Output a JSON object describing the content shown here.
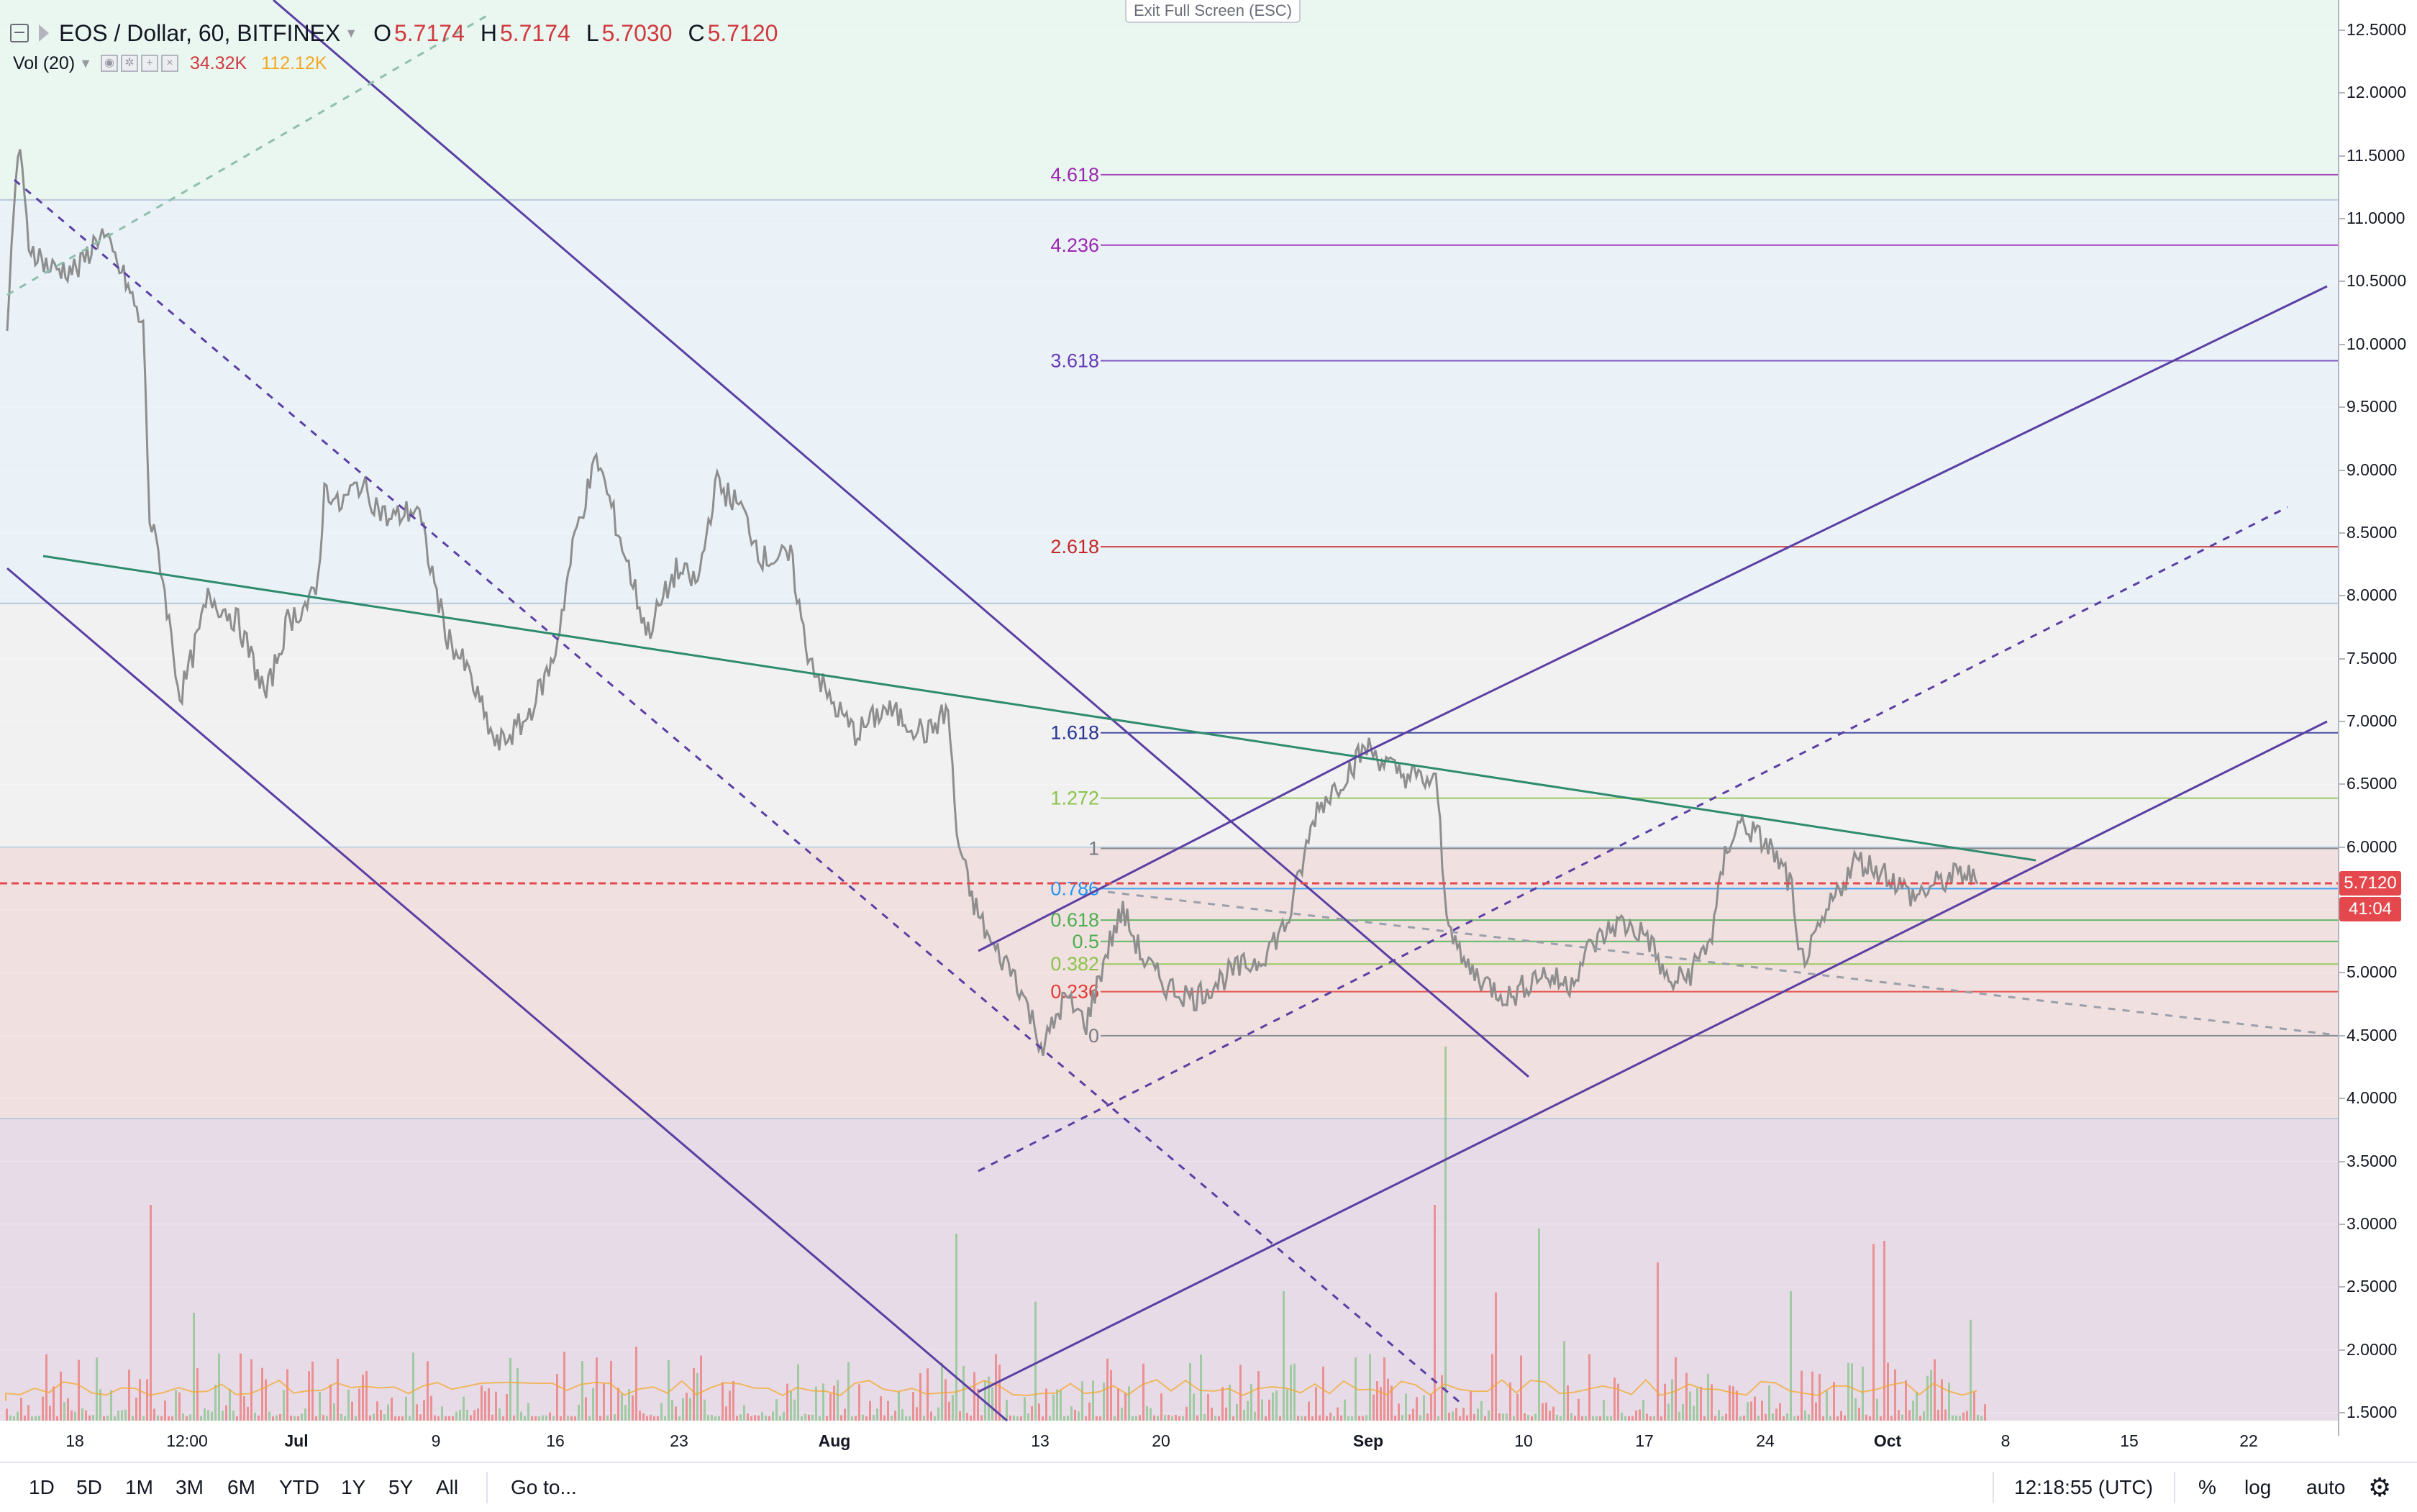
{
  "header": {
    "title": "EOS / Dollar, 60, BITFINEX",
    "ohlc": [
      {
        "key": "O",
        "value": "5.7174"
      },
      {
        "key": "H",
        "value": "5.7174"
      },
      {
        "key": "L",
        "value": "5.7030"
      },
      {
        "key": "C",
        "value": "5.7120"
      }
    ]
  },
  "volume_legend": {
    "label": "Vol (20)",
    "value": "34.32K",
    "ma_value": "112.12K"
  },
  "exit_fullscreen": "Exit Full Screen (ESC)",
  "price_axis": {
    "ticks": [
      "12.5000",
      "12.0000",
      "11.5000",
      "11.0000",
      "10.5000",
      "10.0000",
      "9.5000",
      "9.0000",
      "8.5000",
      "8.0000",
      "7.5000",
      "7.0000",
      "6.5000",
      "6.0000",
      "5.5000",
      "5.0000",
      "4.5000",
      "4.0000",
      "3.5000",
      "3.0000",
      "2.5000",
      "2.0000",
      "1.5000"
    ],
    "current_price": "5.7120",
    "countdown": "41:04"
  },
  "time_axis": {
    "labels": [
      {
        "text": "18",
        "bold": false
      },
      {
        "text": "12:00",
        "bold": false
      },
      {
        "text": "Jul",
        "bold": true
      },
      {
        "text": "9",
        "bold": false
      },
      {
        "text": "16",
        "bold": false
      },
      {
        "text": "23",
        "bold": false
      },
      {
        "text": "Aug",
        "bold": true
      },
      {
        "text": "13",
        "bold": false
      },
      {
        "text": "20",
        "bold": false
      },
      {
        "text": "Sep",
        "bold": true
      },
      {
        "text": "10",
        "bold": false
      },
      {
        "text": "17",
        "bold": false
      },
      {
        "text": "24",
        "bold": false
      },
      {
        "text": "Oct",
        "bold": true
      },
      {
        "text": "8",
        "bold": false
      },
      {
        "text": "15",
        "bold": false
      },
      {
        "text": "22",
        "bold": false
      }
    ]
  },
  "fib_levels": [
    {
      "level": "4.618",
      "price": 11.35,
      "color": "#9c27b0"
    },
    {
      "level": "4.236",
      "price": 10.79,
      "color": "#9c27b0"
    },
    {
      "level": "3.618",
      "price": 9.87,
      "color": "#673ab7"
    },
    {
      "level": "2.618",
      "price": 8.39,
      "color": "#c62828"
    },
    {
      "level": "1.618",
      "price": 6.91,
      "color": "#283593"
    },
    {
      "level": "1.272",
      "price": 6.39,
      "color": "#8bc34a"
    },
    {
      "level": "1",
      "price": 5.99,
      "color": "#787b86"
    },
    {
      "level": "0.786",
      "price": 5.67,
      "color": "#2196f3"
    },
    {
      "level": "0.618",
      "price": 5.42,
      "color": "#4caf50"
    },
    {
      "level": "0.5",
      "price": 5.25,
      "color": "#4caf50"
    },
    {
      "level": "0.382",
      "price": 5.07,
      "color": "#8bc34a"
    },
    {
      "level": "0.236",
      "price": 4.85,
      "color": "#e53935"
    },
    {
      "level": "0",
      "price": 4.5,
      "color": "#787b86"
    }
  ],
  "toolbar": {
    "timeframes": [
      "1D",
      "5D",
      "1M",
      "3M",
      "6M",
      "YTD",
      "1Y",
      "5Y",
      "All"
    ],
    "goto": "Go to...",
    "clock": "12:18:55 (UTC)",
    "percent": "%",
    "log": "log",
    "auto": "auto"
  },
  "colors": {
    "candle_up": "#9e9e9e",
    "candle_down": "#7a7a7a",
    "price_line": "#e4484d",
    "trend_green": "#2e8b6e",
    "channel_purple": "#5b3fa3"
  }
}
